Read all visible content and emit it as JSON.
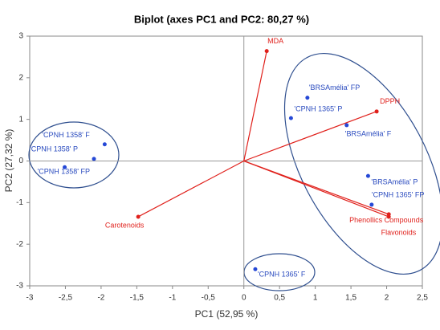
{
  "chart_data": {
    "type": "biplot",
    "title": "Biplot (axes PC1 and PC2: 80,27 %)",
    "x_label": "PC1 (52,95 %)",
    "y_label": "PC2 (27,32 %)",
    "xlim": [
      -3,
      2.5
    ],
    "ylim": [
      -3,
      3
    ],
    "xticks": [
      -3,
      {
        "value": -2.5,
        "label": "-2,5"
      },
      -2,
      {
        "value": -1.5,
        "label": "-1,5"
      },
      -1,
      {
        "value": -0.5,
        "label": "-0,5"
      },
      0,
      {
        "value": 0.5,
        "label": "0,5"
      },
      1,
      {
        "value": 1.5,
        "label": "1,5"
      },
      2,
      {
        "value": 2.5,
        "label": "2,5"
      }
    ],
    "yticks": [
      -3,
      -2,
      -1,
      0,
      1,
      2,
      3
    ],
    "observations": {
      "color": "#2548d6",
      "labels": [
        "'CPNH 1358' F",
        "'CPNH 1358' P",
        "'CPNH 1358' FP",
        "'CPNH 1365' P",
        "'BRSAmélia' FP",
        "'BRSAmélia' F",
        "'BRSAmélia' P",
        "'CPNH 1365' FP",
        "'CPNH 1365' F"
      ],
      "x": [
        -1.95,
        -2.1,
        -2.51,
        0.66,
        0.89,
        1.44,
        1.74,
        1.79,
        0.16
      ],
      "y": [
        0.4,
        0.05,
        -0.15,
        1.03,
        1.52,
        0.86,
        -0.36,
        -1.05,
        -2.6
      ]
    },
    "variables": {
      "color": "#e0201b",
      "labels": [
        "MDA",
        "DPPH",
        "Phenollics Compounds",
        "Flavonoids",
        "Carotenoids"
      ],
      "x": [
        0.32,
        1.86,
        2.03,
        2.03,
        -1.48
      ],
      "y": [
        2.64,
        1.19,
        -1.28,
        -1.34,
        -1.34
      ]
    }
  }
}
